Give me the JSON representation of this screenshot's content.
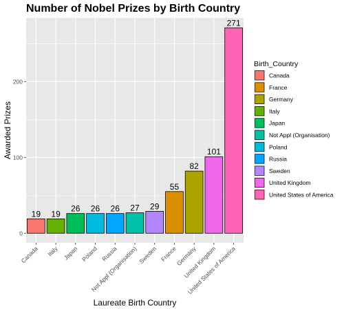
{
  "chart_data": {
    "type": "bar",
    "title": "Number of Nobel Prizes by Birth Country",
    "xlabel": "Laureate Birth Country",
    "ylabel": "Awarded Prizes",
    "categories": [
      "Canada",
      "Italy",
      "Japan",
      "Poland",
      "Russia",
      "Not Appl (Organisation)",
      "Sweden",
      "France",
      "Germany",
      "United Kingdom",
      "United States of America"
    ],
    "values": [
      19,
      19,
      26,
      26,
      26,
      27,
      29,
      55,
      82,
      101,
      271
    ],
    "data_labels": [
      "19",
      "19",
      "26",
      "26",
      "26",
      "27",
      "29",
      "55",
      "82",
      "101",
      "271"
    ],
    "ylim": [
      -12.5,
      284
    ],
    "yticks": [
      0,
      100,
      200
    ],
    "ytick_labels": [
      "0",
      "100",
      "200"
    ],
    "grid": true,
    "background": "#e8e8e8",
    "legend": {
      "title": "Birth_Country",
      "position": "right",
      "entries": [
        "Canada",
        "France",
        "Germany",
        "Italy",
        "Japan",
        "Not Appl (Organisation)",
        "Poland",
        "Russia",
        "Sweden",
        "United Kingdom",
        "United States of America"
      ]
    },
    "colors": {
      "Canada": "#F8766D",
      "France": "#DB8E00",
      "Germany": "#AEA200",
      "Italy": "#64B200",
      "Japan": "#00BD5C",
      "Not Appl (Organisation)": "#00C1A7",
      "Poland": "#00BADE",
      "Russia": "#00A6FF",
      "Sweden": "#B385FF",
      "United Kingdom": "#EF67EB",
      "United States of America": "#FF63B6"
    }
  }
}
